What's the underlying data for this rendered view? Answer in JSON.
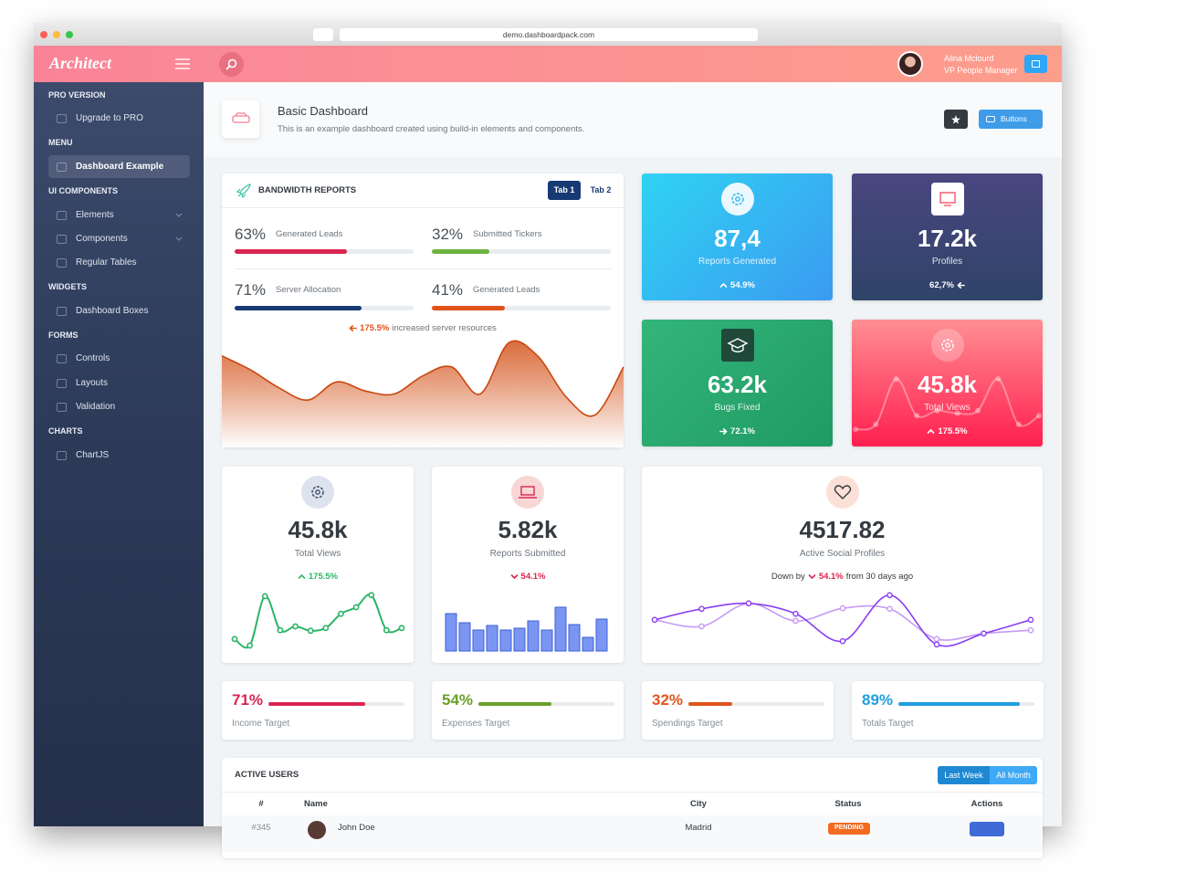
{
  "browser": {
    "url": "demo.dashboardpack.com"
  },
  "header": {
    "logo": "Architect",
    "user_name": "Alina Mclourd",
    "user_role": "VP People Manager"
  },
  "sidebar": [
    {
      "title": "PRO VERSION",
      "items": [
        "Upgrade to PRO"
      ]
    },
    {
      "title": "MENU",
      "items": [
        "Dashboard Example"
      ]
    },
    {
      "title": "UI COMPONENTS",
      "items": [
        "Elements",
        "Components",
        "Regular Tables"
      ]
    },
    {
      "title": "WIDGETS",
      "items": [
        "Dashboard Boxes"
      ]
    },
    {
      "title": "FORMS",
      "items": [
        "Controls",
        "Layouts",
        "Validation"
      ]
    },
    {
      "title": "CHARTS",
      "items": [
        "ChartJS"
      ]
    }
  ],
  "page_title": {
    "title": "Basic Dashboard",
    "subtitle": "This is an example dashboard created using build-in elements and components.",
    "button": "Buttons"
  },
  "bandwidth": {
    "title": "BANDWIDTH REPORTS",
    "tabs": [
      "Tab 1",
      "Tab 2"
    ],
    "progress": [
      {
        "value": 63,
        "label": "63%",
        "name": "Generated Leads",
        "color": "#d92550"
      },
      {
        "value": 32,
        "label": "32%",
        "name": "Submitted Tickers",
        "color": "#6db33f"
      },
      {
        "value": 71,
        "label": "71%",
        "name": "Server Allocation",
        "color": "#173a73"
      },
      {
        "value": 41,
        "label": "41%",
        "name": "Generated Leads",
        "color": "#e0541a"
      }
    ],
    "note": {
      "change": "175.5%",
      "text": "increased server resources"
    },
    "chart": {
      "type": "area",
      "ylim": [
        0,
        100
      ],
      "values": [
        73,
        59,
        41,
        29,
        47,
        38,
        35,
        53,
        62,
        35,
        86,
        73,
        32,
        14,
        62
      ],
      "color": "#d4541c"
    }
  },
  "tiles": [
    {
      "value": "87,4",
      "label": "Reports Generated",
      "change": "54.9%"
    },
    {
      "value": "17.2k",
      "label": "Profiles",
      "change": "62,7%"
    },
    {
      "value": "63.2k",
      "label": "Bugs Fixed",
      "change": "72.1%"
    },
    {
      "value": "45.8k",
      "label": "Total Views",
      "change": "175.5%",
      "chart": {
        "type": "line",
        "ylim": [
          0,
          100
        ],
        "values": [
          8,
          17,
          100,
          33,
          42,
          37,
          42,
          100,
          17,
          33
        ]
      }
    }
  ],
  "cards": [
    {
      "value": "45.8k",
      "label": "Total Views",
      "change": "175.5%",
      "chart": {
        "type": "line",
        "ylim": [
          0,
          100
        ],
        "values": [
          17,
          5,
          95,
          33,
          40,
          32,
          37,
          63,
          75,
          97,
          33,
          37
        ],
        "color": "#2bb567"
      }
    },
    {
      "value": "5.82k",
      "label": "Reports Submitted",
      "change": "54.1%",
      "chart": {
        "type": "bar",
        "ylim": [
          0,
          60
        ],
        "values": [
          41,
          31,
          23,
          28,
          23,
          25,
          33,
          23,
          48,
          29,
          15,
          35
        ],
        "color": "#7a96f2"
      }
    }
  ],
  "social": {
    "value": "4517.82",
    "label": "Active Social Profiles",
    "prefix": "Down by",
    "change": "54.1%",
    "suffix": "from 30 days ago",
    "chart": {
      "type": "line",
      "ylim": [
        0,
        100
      ],
      "series": [
        {
          "values": [
            52,
            72,
            82,
            63,
            13,
            97,
            7,
            27,
            52
          ],
          "color": "#8a3ff0"
        },
        {
          "values": [
            52,
            40,
            82,
            50,
            73,
            72,
            17,
            27,
            33
          ],
          "color": "#c69af5"
        }
      ]
    }
  },
  "targets": [
    {
      "value": 71,
      "label": "71%",
      "name": "Income Target",
      "color": "#d92550"
    },
    {
      "value": 54,
      "label": "54%",
      "name": "Expenses Target",
      "color": "#6a9f2a"
    },
    {
      "value": 32,
      "label": "32%",
      "name": "Spendings Target",
      "color": "#e0541a"
    },
    {
      "value": 89,
      "label": "89%",
      "name": "Totals Target",
      "color": "#1f9fe0"
    }
  ],
  "table": {
    "title": "ACTIVE USERS",
    "buttons": [
      "Last Week",
      "All Month"
    ],
    "columns": [
      "#",
      "Name",
      "City",
      "Status",
      "Actions"
    ],
    "rows": [
      [
        "#345",
        "John Doe",
        "Madrid",
        "PENDING"
      ]
    ]
  }
}
